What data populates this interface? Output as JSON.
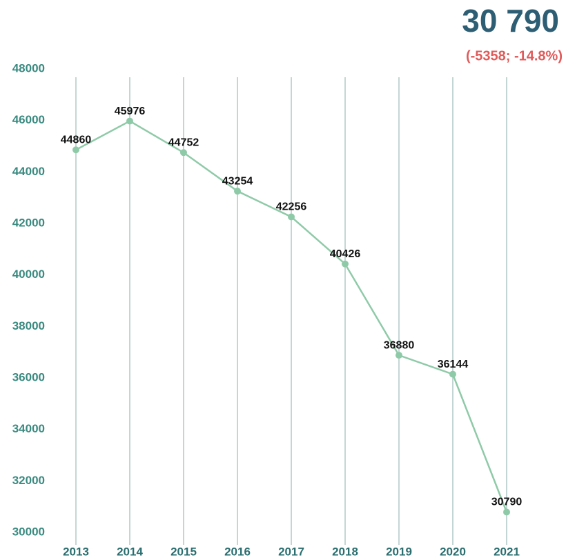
{
  "chart_data": {
    "type": "line",
    "title": "30 790",
    "subtitle": "(-5358; -14.8%)",
    "categories": [
      "2013",
      "2014",
      "2015",
      "2016",
      "2017",
      "2018",
      "2019",
      "2020",
      "2021"
    ],
    "values": [
      44860,
      45976,
      44752,
      43254,
      42256,
      40426,
      36880,
      36144,
      30790
    ],
    "color": "#8fcaa8",
    "ylim": [
      30000,
      48000
    ],
    "yticks": [
      30000,
      32000,
      34000,
      36000,
      38000,
      40000,
      42000,
      44000,
      46000,
      48000
    ],
    "grid": true
  }
}
